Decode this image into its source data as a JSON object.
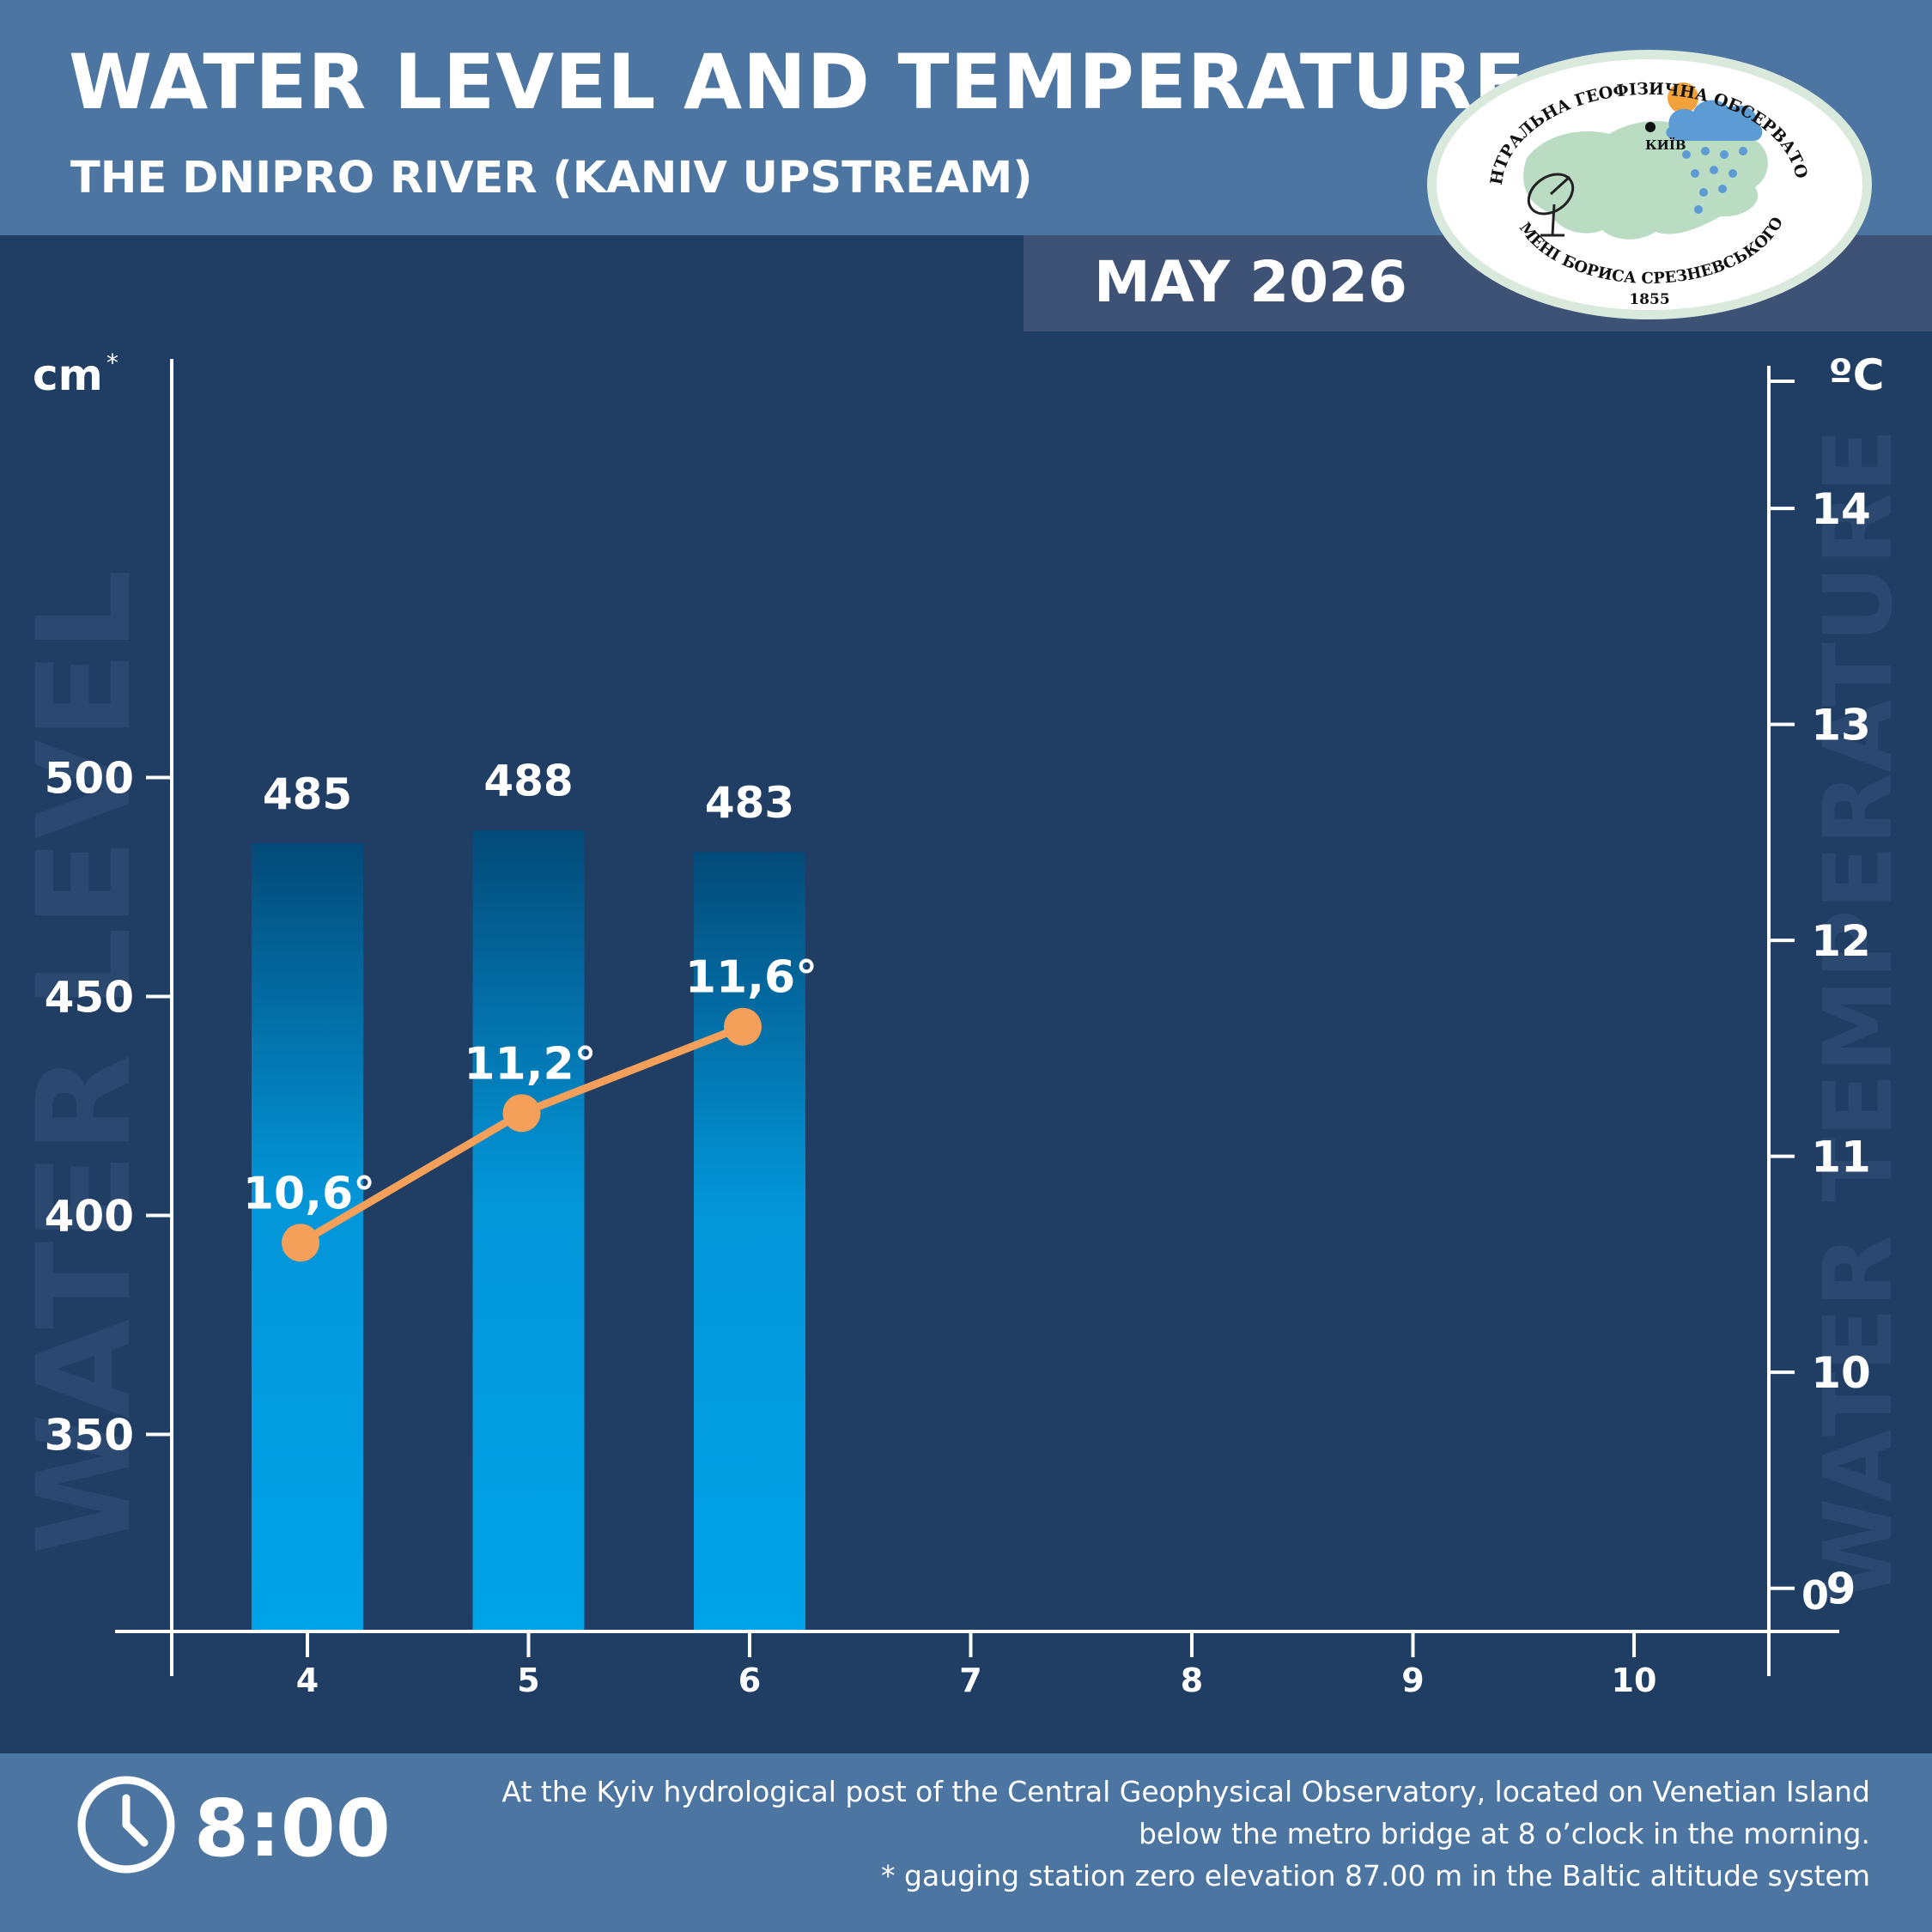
{
  "header": {
    "title": "WATER LEVEL AND TEMPERATURE",
    "subtitle": "THE DNIPRO RIVER (KANIV UPSTREAM)",
    "month": "MAY 2026"
  },
  "logo": {
    "top_text": "ЦЕНТРАЛЬНА ГЕОФІЗИЧНА ОБСЕРВАТОРІЯ",
    "bottom_text": "ІМЕНІ БОРИСА СРЕЗНЕВСЬКОГО",
    "city": "КИЇВ",
    "year": "1855",
    "colors": {
      "ring": "#d9eadd",
      "map": "#b9dcc3",
      "sun": "#f2a23a",
      "cloud": "#5c9bd3"
    }
  },
  "footer": {
    "time": "8:00",
    "note_lines": [
      "At the Kyiv hydrological post of the Central Geophysical Observatory, located on Venetian Island",
      "below the metro bridge  at 8 o’clock in the morning.",
      "* gauging station zero elevation 87.00 m in the Baltic altitude system"
    ]
  },
  "chart_data": {
    "type": "bar",
    "categories": [
      "4",
      "5",
      "6",
      "7",
      "8",
      "9",
      "10"
    ],
    "series": [
      {
        "values": [
          485,
          488,
          483,
          null,
          null,
          null,
          null
        ],
        "labels": [
          "485",
          "488",
          "483",
          "",
          "",
          "",
          ""
        ],
        "axis": "left",
        "color_top": "#034a78",
        "color_bottom": "#00a3e8"
      },
      {
        "values": [
          10.6,
          11.2,
          11.6,
          null,
          null,
          null,
          null
        ],
        "labels": [
          "10,6°",
          "11,2°",
          "11,6°",
          "",
          "",
          "",
          ""
        ],
        "axis": "right",
        "type": "line",
        "color": "#f5a05a"
      }
    ],
    "left_axis": {
      "unit": "cm",
      "unit_mark": "*",
      "watermark": "WATER LEVEL",
      "ticks": [
        350,
        400,
        450,
        500
      ],
      "tick_labels": [
        "350",
        "400",
        "450",
        "500"
      ],
      "range": [
        305,
        565
      ]
    },
    "right_axis": {
      "unit": "ºC",
      "watermark": "WATER TEMPERATURE",
      "ticks": [
        9,
        10,
        11,
        12,
        13,
        14
      ],
      "tick_labels": [
        "9",
        "10",
        "11",
        "12",
        "13",
        "14"
      ],
      "zero_label": "0",
      "range": [
        8.8,
        14.7
      ]
    },
    "grid": false,
    "colors": {
      "background": "#203d63",
      "header": "#4c76a1",
      "month_band": "#3e5276",
      "axis": "#ffffff",
      "watermark": "#2b4870"
    }
  }
}
